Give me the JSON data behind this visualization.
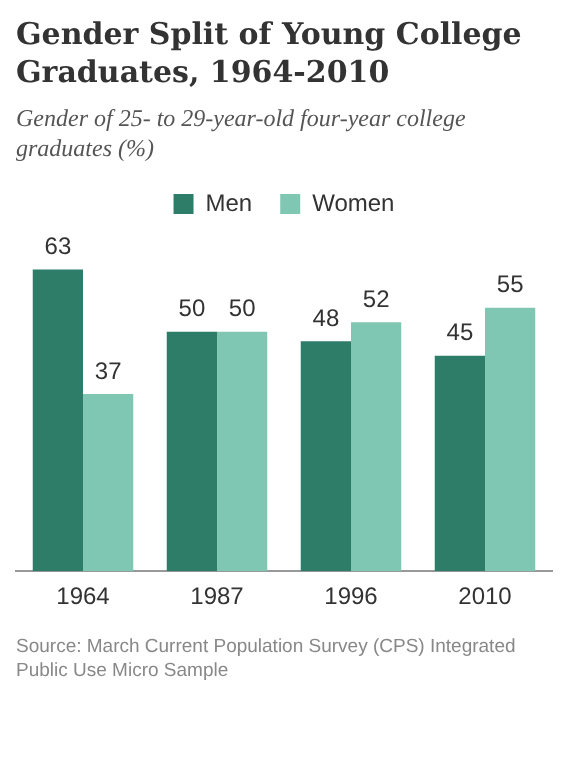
{
  "chart_data": {
    "type": "bar",
    "title": "Gender Split of Young College Graduates, 1964-2010",
    "subtitle": "Gender of 25- to 29-year-old four-year college graduates (%)",
    "categories": [
      "1964",
      "1987",
      "1996",
      "2010"
    ],
    "series": [
      {
        "name": "Men",
        "color": "#2e7d69",
        "values": [
          63,
          50,
          48,
          45
        ]
      },
      {
        "name": "Women",
        "color": "#7fc6b3",
        "values": [
          37,
          50,
          52,
          55
        ]
      }
    ],
    "data_labels": true,
    "legend": "top",
    "grid": false,
    "annotations": [
      "Source: March Current Population Survey (CPS) Integrated Public Use Micro Sample"
    ]
  }
}
